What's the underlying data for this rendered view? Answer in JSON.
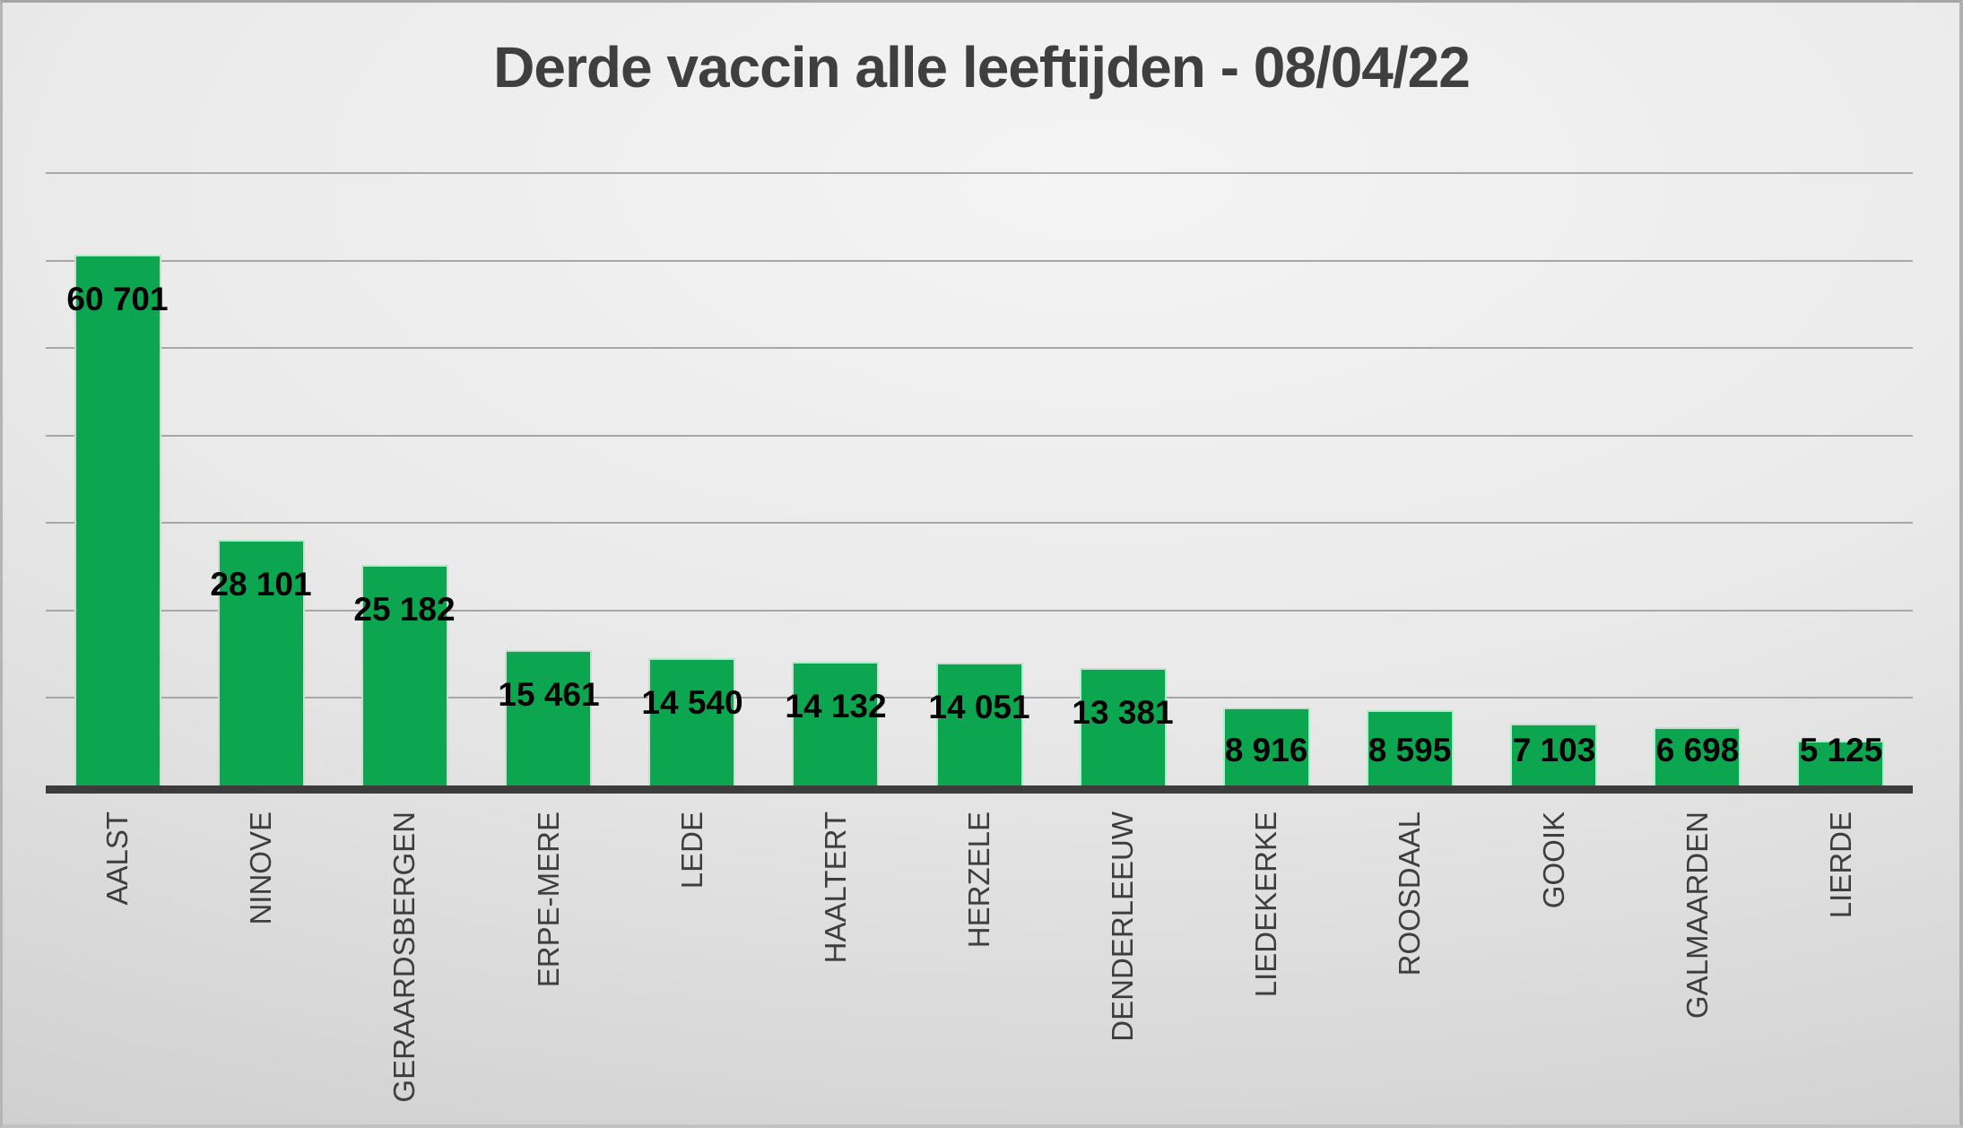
{
  "title": "Derde vaccin alle leeftijden - 08/04/22",
  "colors": {
    "bar_fill": "#0ba64f",
    "bar_border": "rgba(255,255,255,0.72)",
    "axis_line": "#3c3c3c",
    "gridline": "#a7a7a7",
    "title_text": "#3f3f3f",
    "category_text": "#3e3e3e",
    "value_label_text": "#000000"
  },
  "chart_data": {
    "type": "bar",
    "title": "Derde vaccin alle leeftijden - 08/04/22",
    "categories": [
      "AALST",
      "NINOVE",
      "GERAARDSBERGEN",
      "ERPE-MERE",
      "LEDE",
      "HAALTERT",
      "HERZELE",
      "DENDERLEEUW",
      "LIEDEKERKE",
      "ROOSDAAL",
      "GOOIK",
      "GALMAARDEN",
      "LIERDE"
    ],
    "values": [
      60701,
      28101,
      25182,
      15461,
      14540,
      14132,
      14051,
      13381,
      8916,
      8595,
      7103,
      6698,
      5125
    ],
    "value_labels": [
      "60 701",
      "28 101",
      "25 182",
      "15 461",
      "14 540",
      "14 132",
      "14 051",
      "13 381",
      "8 916",
      "8 595",
      "7 103",
      "6 698",
      "5 125"
    ],
    "xlabel": "",
    "ylabel": "",
    "ylim": [
      0,
      70000
    ],
    "gridline_interval": 10000,
    "y_tick_labels_visible": false,
    "grid": "horizontal",
    "legend_position": "none",
    "bar_label_position": "inside-end",
    "category_label_rotation_degrees": 90
  }
}
